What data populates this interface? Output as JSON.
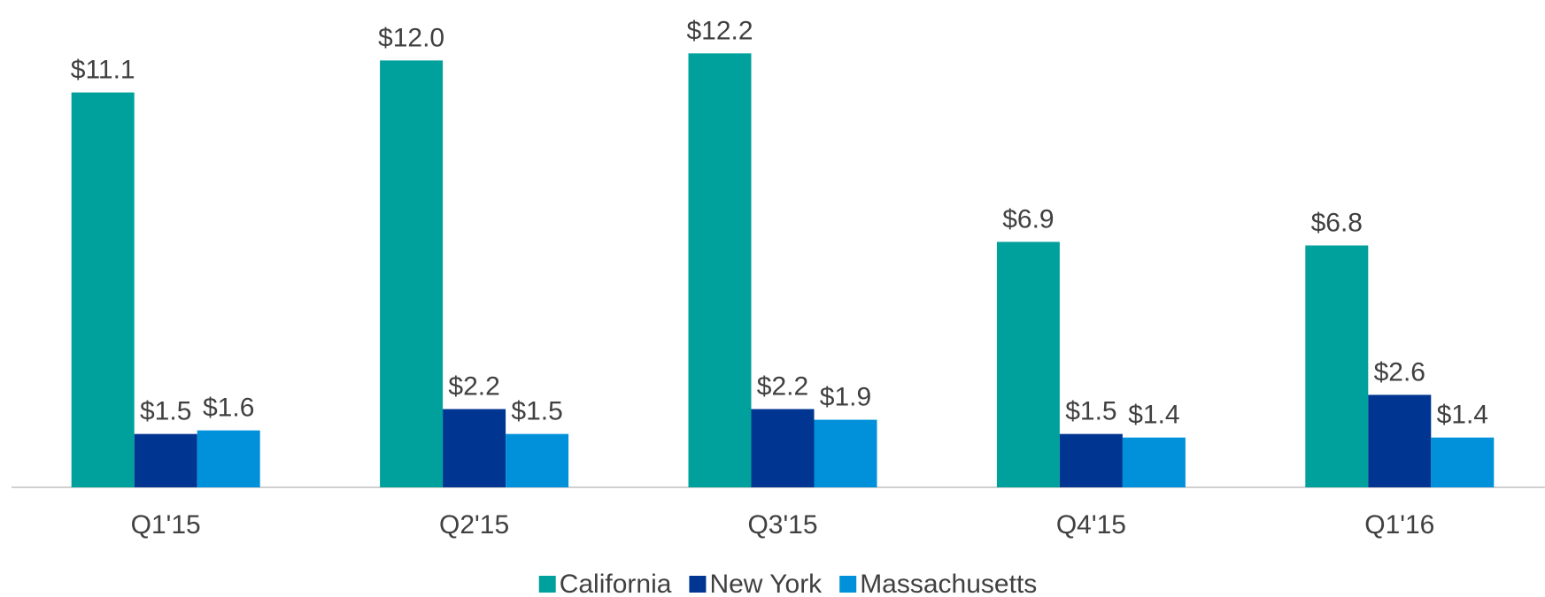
{
  "chart_data": {
    "type": "bar",
    "categories": [
      "Q1'15",
      "Q2'15",
      "Q3'15",
      "Q4'15",
      "Q1'16"
    ],
    "series": [
      {
        "name": "California",
        "color": "#00a19d",
        "values": [
          11.1,
          12.0,
          12.2,
          6.9,
          6.8
        ],
        "value_labels": [
          "$11.1",
          "$12.0",
          "$12.2",
          "$6.9",
          "$6.8"
        ]
      },
      {
        "name": "New York",
        "color": "#003591",
        "values": [
          1.5,
          2.2,
          2.2,
          1.5,
          2.6
        ],
        "value_labels": [
          "$1.5",
          "$2.2",
          "$2.2",
          "$1.5",
          "$2.6"
        ]
      },
      {
        "name": "Massachusetts",
        "color": "#0091da",
        "values": [
          1.6,
          1.5,
          1.9,
          1.4,
          1.4
        ],
        "value_labels": [
          "$1.6",
          "$1.5",
          "$1.9",
          "$1.4",
          "$1.4"
        ]
      }
    ],
    "ylim": [
      0,
      13.7
    ],
    "legend": "bottom"
  }
}
